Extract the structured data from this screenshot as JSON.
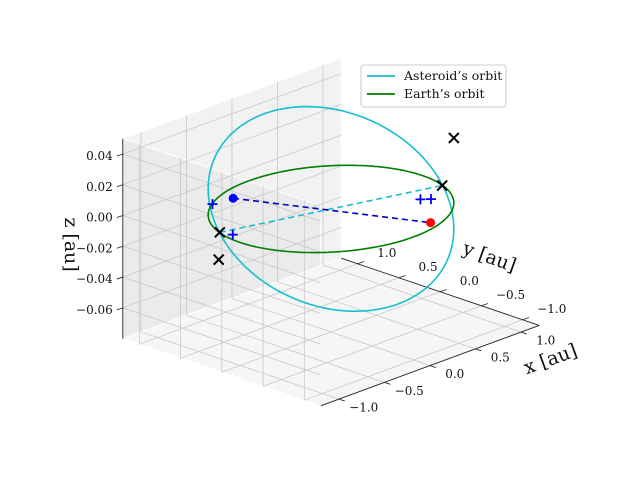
{
  "chart_data": {
    "type": "line3d",
    "xlabel": "x [au]",
    "ylabel": "y [au]",
    "zlabel": "z [au]",
    "xlim": [
      -1.2,
      1.2
    ],
    "ylim": [
      -1.2,
      1.2
    ],
    "zlim": [
      -0.08,
      0.05
    ],
    "x_ticks": [
      {
        "v": -1.0,
        "label": "−1.0"
      },
      {
        "v": -0.5,
        "label": "−0.5"
      },
      {
        "v": 0.0,
        "label": "0.0"
      },
      {
        "v": 0.5,
        "label": "0.5"
      },
      {
        "v": 1.0,
        "label": "1.0"
      }
    ],
    "y_ticks": [
      {
        "v": -1.0,
        "label": "−1.0"
      },
      {
        "v": -0.5,
        "label": "−0.5"
      },
      {
        "v": 0.0,
        "label": "0.0"
      },
      {
        "v": 0.5,
        "label": "0.5"
      },
      {
        "v": 1.0,
        "label": "1.0"
      }
    ],
    "z_ticks": [
      {
        "v": -0.06,
        "label": "−0.06"
      },
      {
        "v": -0.04,
        "label": "−0.04"
      },
      {
        "v": -0.02,
        "label": "−0.02"
      },
      {
        "v": 0.0,
        "label": "0.00"
      },
      {
        "v": 0.02,
        "label": "0.02"
      },
      {
        "v": 0.04,
        "label": "0.04"
      }
    ],
    "grid": true,
    "legend_position": "upper-right",
    "series": [
      {
        "name": "Asteroid’s orbit",
        "color": "#17becf",
        "inclination_deg": 2.6,
        "radius": 1.0
      },
      {
        "name": "Earth’s orbit",
        "color": "#008000",
        "inclination_deg": 0,
        "radius": 1.0
      }
    ],
    "node_line": {
      "color": "#17becf",
      "start": {
        "x": -0.95,
        "y": 0.3,
        "z": 0.0
      },
      "end": {
        "x": 0.95,
        "y": -0.3,
        "z": 0.0
      }
    },
    "connector": {
      "color": "#0000cc",
      "start": {
        "x": -0.35,
        "y": 0.8,
        "z": 0.0
      },
      "end": {
        "x": 0.55,
        "y": -0.6,
        "z": -0.01
      }
    },
    "points": [
      {
        "x": -0.35,
        "y": 0.8,
        "z": 0.0,
        "color": "#0000ff",
        "marker": "dot"
      },
      {
        "x": 0.55,
        "y": -0.6,
        "z": -0.01,
        "color": "#ff0000",
        "marker": "dot"
      }
    ],
    "x_markers": [
      {
        "x": 0.77,
        "y": -0.64,
        "z": 0.041
      },
      {
        "x": 0.95,
        "y": -0.3,
        "z": 0.0
      },
      {
        "x": -0.95,
        "y": 0.3,
        "z": 0.0
      },
      {
        "x": -0.4,
        "y": 0.92,
        "z": -0.041
      }
    ],
    "plus_markers": [
      {
        "x": -0.55,
        "y": 0.83,
        "z": 0.0
      },
      {
        "x": 0.62,
        "y": -0.4,
        "z": 0.0
      },
      {
        "x": -0.2,
        "y": 0.97,
        "z": -0.03
      },
      {
        "x": 0.99,
        "y": -0.12,
        "z": -0.013
      }
    ]
  }
}
